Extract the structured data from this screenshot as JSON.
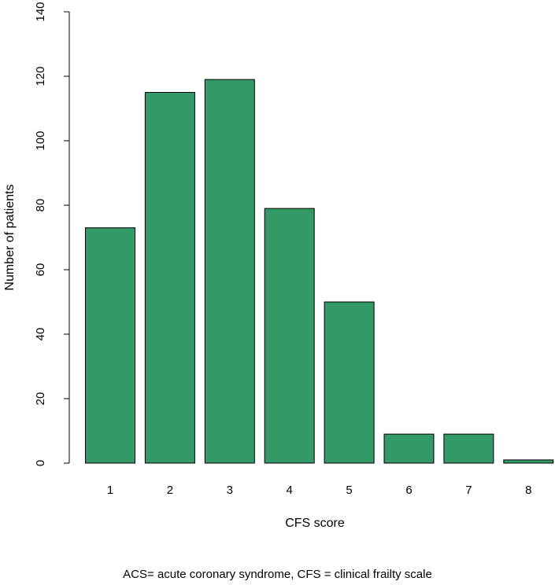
{
  "chart_data": {
    "type": "bar",
    "title": "",
    "xlabel": "CFS score",
    "ylabel": "Number of patients",
    "categories": [
      "1",
      "2",
      "3",
      "4",
      "5",
      "6",
      "7",
      "8"
    ],
    "values": [
      73,
      115,
      119,
      79,
      50,
      9,
      9,
      1
    ],
    "ylim": [
      0,
      140
    ],
    "yticks": [
      0,
      20,
      40,
      60,
      80,
      100,
      120,
      140
    ],
    "grid": false,
    "legend": "none",
    "bar_color": "#339966",
    "bar_edge_color": "#000000"
  },
  "caption": "ACS= acute coronary syndrome, CFS = clinical frailty scale"
}
